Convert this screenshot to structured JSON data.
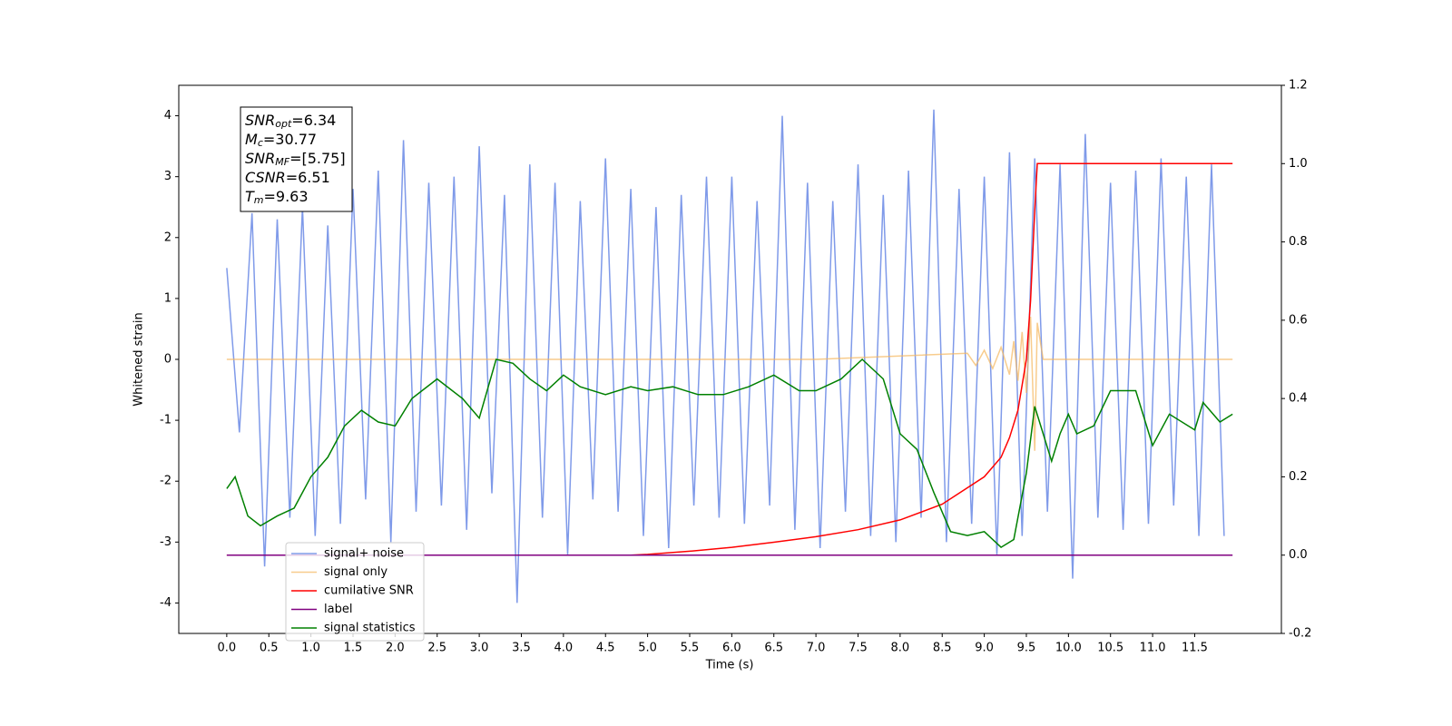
{
  "chart_data": {
    "type": "line",
    "xlabel": "Time (s)",
    "ylabel": "Whitened strain",
    "xlim": [
      -0.57,
      12.53
    ],
    "ylim": [
      -4.5,
      4.5
    ],
    "y2lim": [
      -0.2,
      1.2
    ],
    "xticks": [
      {
        "value": 0,
        "label": "0.0"
      },
      0.5,
      {
        "value": 1,
        "label": "1.0"
      },
      1.5,
      {
        "value": 2,
        "label": "2.0"
      },
      2.5,
      {
        "value": 3,
        "label": "3.0"
      },
      3.5,
      {
        "value": 4,
        "label": "4.0"
      },
      4.5,
      {
        "value": 5,
        "label": "5.0"
      },
      5.5,
      {
        "value": 6,
        "label": "6.0"
      },
      6.5,
      {
        "value": 7,
        "label": "7.0"
      },
      7.5,
      {
        "value": 8,
        "label": "8.0"
      },
      8.5,
      {
        "value": 9,
        "label": "9.0"
      },
      9.5,
      {
        "value": 10,
        "label": "10.0"
      },
      10.5,
      {
        "value": 11,
        "label": "11.0"
      },
      11.5
    ],
    "yticks": [
      -4,
      -3,
      -2,
      -1,
      0,
      1,
      2,
      3,
      4
    ],
    "y2ticks": [
      -0.2,
      {
        "value": 0,
        "label": "0.0"
      },
      0.2,
      0.4,
      0.6,
      0.8,
      {
        "value": 1,
        "label": "1.0"
      },
      1.2
    ],
    "legend": "lower left",
    "annotation": [
      {
        "name": "SNR",
        "sub": "opt",
        "text": "=6.34"
      },
      {
        "name": "M",
        "sub": "c",
        "text": "=30.77"
      },
      {
        "name": "SNR",
        "sub": "MF",
        "text": "=[5.75]"
      },
      {
        "name": "CSNR",
        "sub": null,
        "text": "=6.51"
      },
      {
        "name": "T",
        "sub": "m",
        "text": "=9.63"
      }
    ],
    "series": [
      {
        "name": "signal+ noise",
        "color": "#7895e8",
        "x": [
          0,
          0.15,
          0.3,
          0.45,
          0.6,
          0.75,
          0.9,
          1.05,
          1.2,
          1.35,
          1.5,
          1.65,
          1.8,
          1.95,
          2.1,
          2.25,
          2.4,
          2.55,
          2.7,
          2.85,
          3,
          3.15,
          3.3,
          3.45,
          3.6,
          3.75,
          3.9,
          4.05,
          4.2,
          4.35,
          4.5,
          4.65,
          4.8,
          4.95,
          5.1,
          5.25,
          5.4,
          5.55,
          5.7,
          5.85,
          6,
          6.15,
          6.3,
          6.45,
          6.6,
          6.75,
          6.9,
          7.05,
          7.2,
          7.35,
          7.5,
          7.65,
          7.8,
          7.95,
          8.1,
          8.25,
          8.4,
          8.55,
          8.7,
          8.85,
          9,
          9.15,
          9.3,
          9.45,
          9.6,
          9.75,
          9.9,
          10.05,
          10.2,
          10.35,
          10.5,
          10.65,
          10.8,
          10.95,
          11.1,
          11.25,
          11.4,
          11.55,
          11.7,
          11.85
        ],
        "values": [
          1.5,
          -1.2,
          2.4,
          -3.4,
          2.3,
          -2.6,
          2.5,
          -2.9,
          2.2,
          -2.7,
          2.8,
          -2.3,
          3.1,
          -3.0,
          3.6,
          -2.5,
          2.9,
          -2.4,
          3.0,
          -2.8,
          3.5,
          -2.2,
          2.7,
          -4.0,
          3.2,
          -2.6,
          2.9,
          -3.2,
          2.6,
          -2.3,
          3.3,
          -2.5,
          2.8,
          -2.9,
          2.5,
          -3.1,
          2.7,
          -2.4,
          3.0,
          -2.6,
          3.0,
          -2.7,
          2.6,
          -2.4,
          4.0,
          -2.8,
          2.9,
          -3.1,
          2.6,
          -2.5,
          3.2,
          -2.9,
          2.7,
          -3.0,
          3.1,
          -2.6,
          4.1,
          -3.0,
          2.8,
          -2.7,
          3.0,
          -3.2,
          3.4,
          -2.9,
          3.3,
          -2.5,
          3.2,
          -3.6,
          3.7,
          -2.6,
          2.9,
          -2.8,
          3.1,
          -2.7,
          3.3,
          -2.4,
          3.0,
          -2.9,
          3.2,
          -2.9
        ]
      },
      {
        "name": "signal only",
        "color": "#f5b65c",
        "x": [
          0,
          7.0,
          8.8,
          8.9,
          9.0,
          9.1,
          9.2,
          9.3,
          9.35,
          9.4,
          9.45,
          9.5,
          9.55,
          9.6,
          9.63,
          9.7,
          11.95
        ],
        "values": [
          0,
          0,
          0.1,
          -0.1,
          0.15,
          -0.15,
          0.2,
          -0.25,
          0.3,
          -0.35,
          0.45,
          -0.55,
          0.7,
          -1.5,
          0.6,
          0,
          0
        ]
      },
      {
        "name": "cumilative SNR",
        "color": "#ff0000",
        "axis": "y2",
        "x": [
          0,
          4.8,
          5.0,
          5.5,
          6.0,
          6.5,
          7.0,
          7.5,
          8.0,
          8.5,
          9.0,
          9.2,
          9.3,
          9.4,
          9.5,
          9.55,
          9.6,
          9.63,
          11.95
        ],
        "values": [
          0,
          0,
          0.002,
          0.01,
          0.02,
          0.033,
          0.047,
          0.065,
          0.09,
          0.13,
          0.2,
          0.25,
          0.3,
          0.37,
          0.5,
          0.65,
          0.88,
          1.0,
          1.0
        ]
      },
      {
        "name": "label",
        "color": "#800080",
        "axis": "y2",
        "x": [
          0,
          11.95
        ],
        "values": [
          0,
          0
        ]
      },
      {
        "name": "signal statistics",
        "color": "#008000",
        "axis": "y2",
        "x": [
          0,
          0.1,
          0.25,
          0.4,
          0.6,
          0.8,
          1.0,
          1.2,
          1.4,
          1.6,
          1.8,
          2.0,
          2.2,
          2.5,
          2.8,
          3.0,
          3.2,
          3.4,
          3.6,
          3.8,
          4.0,
          4.2,
          4.5,
          4.8,
          5.0,
          5.3,
          5.6,
          5.9,
          6.2,
          6.5,
          6.8,
          7.0,
          7.3,
          7.55,
          7.8,
          8.0,
          8.2,
          8.4,
          8.6,
          8.8,
          9.0,
          9.2,
          9.35,
          9.5,
          9.6,
          9.8,
          9.9,
          10.0,
          10.1,
          10.3,
          10.5,
          10.8,
          11.0,
          11.2,
          11.5,
          11.6,
          11.8,
          11.95
        ],
        "values": [
          0.17,
          0.2,
          0.1,
          0.075,
          0.1,
          0.12,
          0.2,
          0.25,
          0.33,
          0.37,
          0.34,
          0.33,
          0.4,
          0.45,
          0.4,
          0.35,
          0.5,
          0.49,
          0.45,
          0.42,
          0.46,
          0.43,
          0.41,
          0.43,
          0.42,
          0.43,
          0.41,
          0.41,
          0.43,
          0.46,
          0.42,
          0.42,
          0.45,
          0.5,
          0.45,
          0.31,
          0.27,
          0.16,
          0.06,
          0.05,
          0.06,
          0.02,
          0.04,
          0.21,
          0.38,
          0.24,
          0.31,
          0.36,
          0.31,
          0.33,
          0.42,
          0.42,
          0.28,
          0.36,
          0.32,
          0.39,
          0.34,
          0.36
        ]
      }
    ]
  }
}
